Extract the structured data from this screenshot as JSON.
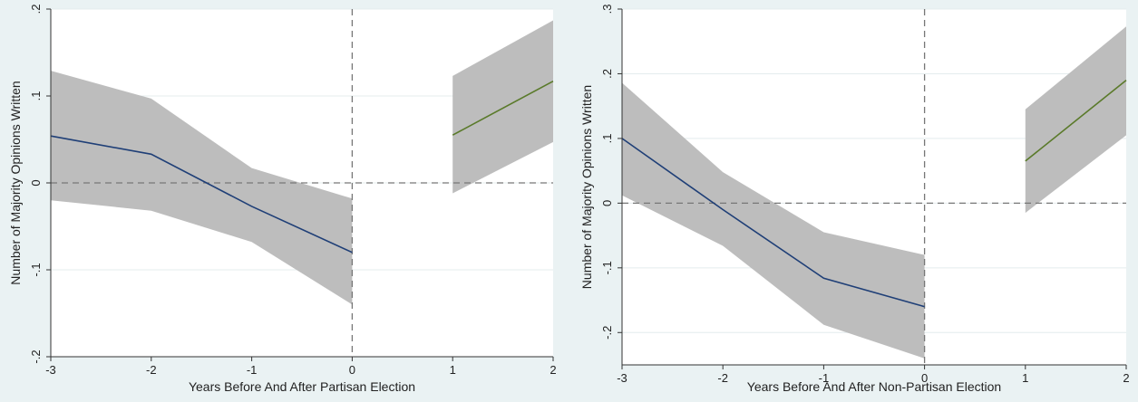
{
  "chart_data": [
    {
      "type": "line",
      "xlabel": "Years Before And After Partisan Election",
      "ylabel": "Number of Majority Opinions Written",
      "xlim": [
        -3,
        2
      ],
      "ylim": [
        -0.2,
        0.2
      ],
      "x_ticks": [
        -3,
        -2,
        -1,
        0,
        1,
        2
      ],
      "y_ticks": [
        -0.2,
        -0.1,
        0,
        0.1,
        0.2
      ],
      "x_tick_labels": [
        "-3",
        "-2",
        "-1",
        "0",
        "1",
        "2"
      ],
      "y_tick_labels": [
        "-.2",
        "-.1",
        "0",
        ".1",
        ".2"
      ],
      "grid": true,
      "reference_lines": {
        "x": 0,
        "y": 0,
        "style": "dashed"
      },
      "series": [
        {
          "x": [
            -3,
            -2,
            -1,
            0
          ],
          "values": [
            0.054,
            0.033,
            -0.027,
            -0.08
          ],
          "ci_lower": [
            -0.02,
            -0.032,
            -0.068,
            -0.14
          ],
          "ci_upper": [
            0.129,
            0.097,
            0.017,
            -0.018
          ],
          "color": "#1f3f77"
        },
        {
          "x": [
            1,
            2
          ],
          "values": [
            0.055,
            0.117
          ],
          "ci_lower": [
            -0.012,
            0.047
          ],
          "ci_upper": [
            0.123,
            0.187
          ],
          "color": "#5a7a2a"
        }
      ]
    },
    {
      "type": "line",
      "xlabel": "Years Before And After Non-Partisan Election",
      "ylabel": "Number of Majority Opinions Written",
      "xlim": [
        -3,
        2
      ],
      "ylim": [
        -0.25,
        0.3
      ],
      "x_ticks": [
        -3,
        -2,
        -1,
        0,
        1,
        2
      ],
      "y_ticks": [
        -0.2,
        -0.1,
        0,
        0.1,
        0.2,
        0.3
      ],
      "x_tick_labels": [
        "-3",
        "-2",
        "-1",
        "0",
        "1",
        "2"
      ],
      "y_tick_labels": [
        "-.2",
        "-.1",
        "0",
        ".1",
        ".2",
        ".3"
      ],
      "grid": true,
      "reference_lines": {
        "x": 0,
        "y": 0,
        "style": "dashed"
      },
      "series": [
        {
          "x": [
            -3,
            -2,
            -1,
            0
          ],
          "values": [
            0.1,
            -0.01,
            -0.116,
            -0.16
          ],
          "ci_lower": [
            0.012,
            -0.066,
            -0.188,
            -0.24
          ],
          "ci_upper": [
            0.186,
            0.048,
            -0.045,
            -0.08
          ],
          "color": "#1f3f77"
        },
        {
          "x": [
            1,
            2
          ],
          "values": [
            0.065,
            0.19
          ],
          "ci_lower": [
            -0.015,
            0.105
          ],
          "ci_upper": [
            0.145,
            0.273
          ],
          "color": "#5a7a2a"
        }
      ]
    }
  ]
}
